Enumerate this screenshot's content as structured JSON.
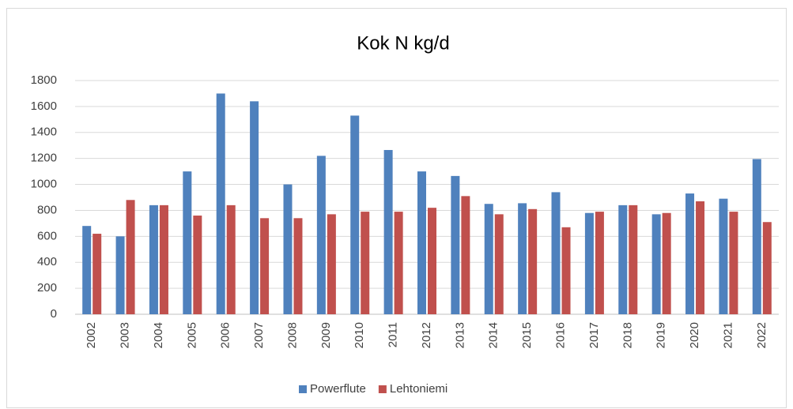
{
  "chart_data": {
    "type": "bar",
    "title": "Kok N kg/d",
    "categories": [
      "2002",
      "2003",
      "2004",
      "2005",
      "2006",
      "2007",
      "2008",
      "2009",
      "2010",
      "2011",
      "2012",
      "2013",
      "2014",
      "2015",
      "2016",
      "2017",
      "2018",
      "2019",
      "2020",
      "2021",
      "2022"
    ],
    "series": [
      {
        "name": "Powerflute",
        "color": "#4f81bd",
        "values": [
          680,
          600,
          840,
          1100,
          1700,
          1640,
          1000,
          1220,
          1530,
          1265,
          1100,
          1065,
          850,
          855,
          940,
          780,
          840,
          770,
          930,
          890,
          1195
        ]
      },
      {
        "name": "Lehtoniemi",
        "color": "#c0504d",
        "values": [
          620,
          880,
          840,
          760,
          840,
          740,
          740,
          770,
          790,
          790,
          820,
          910,
          770,
          810,
          670,
          790,
          840,
          780,
          870,
          790,
          710
        ]
      }
    ],
    "ylim": [
      0,
      1800
    ],
    "yticks": [
      0,
      200,
      400,
      600,
      800,
      1000,
      1200,
      1400,
      1600,
      1800
    ],
    "grid": true,
    "legend": "bottom"
  }
}
